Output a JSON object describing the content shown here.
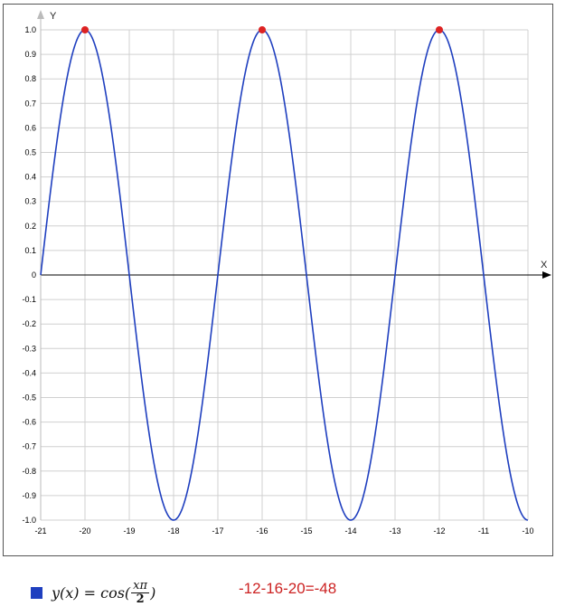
{
  "chart_data": {
    "type": "line",
    "xlabel": "X",
    "ylabel": "Y",
    "xlim": [
      -21,
      -10
    ],
    "ylim": [
      -1.0,
      1.0
    ],
    "x_ticks": [
      -21,
      -20,
      -19,
      -18,
      -17,
      -16,
      -15,
      -14,
      -13,
      -12,
      -11,
      -10
    ],
    "y_ticks": [
      "1.0",
      "0.9",
      "0.8",
      "0.7",
      "0.6",
      "0.5",
      "0.4",
      "0.3",
      "0.2",
      "0.1",
      "0",
      "-0.1",
      "-0.2",
      "-0.3",
      "-0.4",
      "-0.5",
      "-0.6",
      "-0.7",
      "-0.8",
      "-0.9",
      "-1.0"
    ],
    "grid": true,
    "series": [
      {
        "name": "y(x) = cos(xπ/2)",
        "function": "cos(x*pi/2)",
        "color": "#1f3fbf"
      }
    ],
    "highlight_points": [
      {
        "x": -20,
        "y": 1.0
      },
      {
        "x": -16,
        "y": 1.0
      },
      {
        "x": -12,
        "y": 1.0
      }
    ],
    "highlight_color": "#dd2222"
  },
  "legend": {
    "formula_prefix": "y(x) = cos(",
    "frac_num": "xπ",
    "frac_den": "2",
    "formula_suffix": ")"
  },
  "annotation": "-12-16-20=-48"
}
